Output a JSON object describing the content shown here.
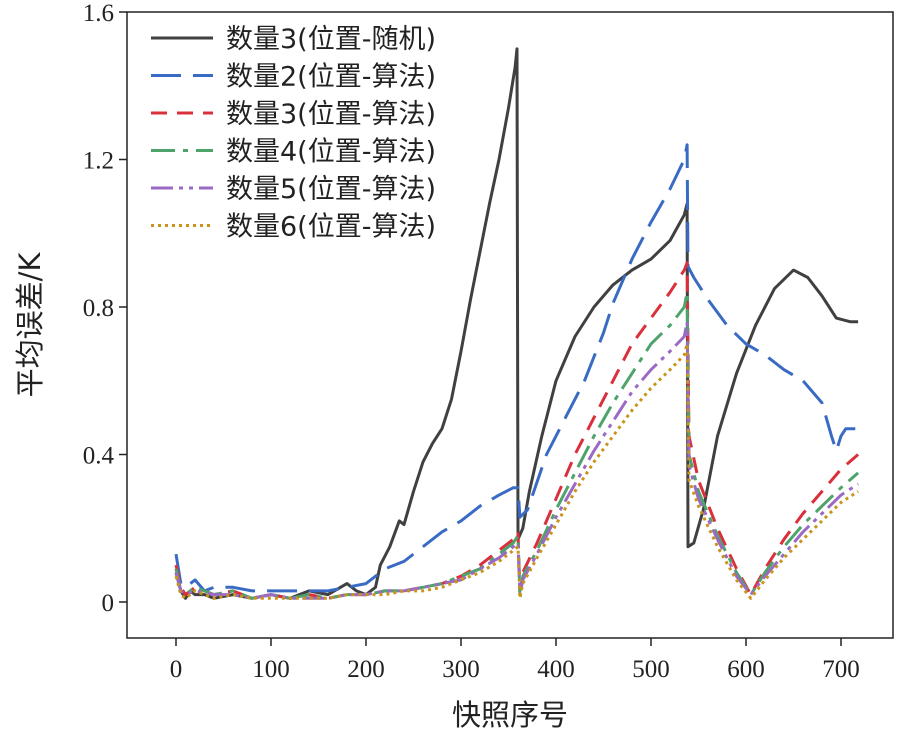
{
  "chart_data": {
    "type": "line",
    "title": "",
    "xlabel": "快照序号",
    "ylabel": "平均误差/K",
    "xlim": [
      -50,
      720
    ],
    "ylim": [
      -0.1,
      1.6
    ],
    "xticks": [
      0,
      100,
      200,
      300,
      400,
      500,
      600,
      700
    ],
    "yticks": [
      0,
      0.4,
      0.8,
      1.2,
      1.6
    ],
    "xtick_labels": [
      "0",
      "100",
      "200",
      "300",
      "400",
      "500",
      "600",
      "700"
    ],
    "ytick_labels": [
      "0",
      "0.4",
      "0.8",
      "1.2",
      "1.6"
    ],
    "legend_position": "top-left",
    "series": [
      {
        "name": "数量3(位置-随机)",
        "color": "#404040",
        "dash": "solid",
        "points": [
          [
            0,
            0.08
          ],
          [
            5,
            0.03
          ],
          [
            10,
            0.01
          ],
          [
            15,
            0.03
          ],
          [
            20,
            0.02
          ],
          [
            30,
            0.02
          ],
          [
            40,
            0.01
          ],
          [
            60,
            0.02
          ],
          [
            80,
            0.01
          ],
          [
            100,
            0.02
          ],
          [
            120,
            0.01
          ],
          [
            140,
            0.03
          ],
          [
            160,
            0.02
          ],
          [
            180,
            0.05
          ],
          [
            190,
            0.03
          ],
          [
            200,
            0.02
          ],
          [
            210,
            0.04
          ],
          [
            215,
            0.1
          ],
          [
            225,
            0.15
          ],
          [
            235,
            0.22
          ],
          [
            240,
            0.21
          ],
          [
            250,
            0.3
          ],
          [
            260,
            0.38
          ],
          [
            270,
            0.43
          ],
          [
            280,
            0.47
          ],
          [
            290,
            0.55
          ],
          [
            300,
            0.68
          ],
          [
            310,
            0.82
          ],
          [
            320,
            0.95
          ],
          [
            330,
            1.08
          ],
          [
            340,
            1.2
          ],
          [
            350,
            1.34
          ],
          [
            357,
            1.45
          ],
          [
            359,
            1.5
          ],
          [
            360,
            0.17
          ],
          [
            365,
            0.2
          ],
          [
            372,
            0.3
          ],
          [
            385,
            0.45
          ],
          [
            400,
            0.6
          ],
          [
            420,
            0.72
          ],
          [
            440,
            0.8
          ],
          [
            460,
            0.86
          ],
          [
            480,
            0.9
          ],
          [
            500,
            0.93
          ],
          [
            520,
            0.98
          ],
          [
            535,
            1.05
          ],
          [
            538,
            1.08
          ],
          [
            539,
            0.15
          ],
          [
            545,
            0.16
          ],
          [
            555,
            0.25
          ],
          [
            570,
            0.45
          ],
          [
            590,
            0.62
          ],
          [
            610,
            0.75
          ],
          [
            630,
            0.85
          ],
          [
            650,
            0.9
          ],
          [
            665,
            0.88
          ],
          [
            680,
            0.83
          ],
          [
            695,
            0.77
          ],
          [
            710,
            0.76
          ],
          [
            718,
            0.76
          ]
        ]
      },
      {
        "name": "数量2(位置-算法)",
        "color": "#3a6bc4",
        "dash": "30,12",
        "points": [
          [
            0,
            0.13
          ],
          [
            5,
            0.05
          ],
          [
            10,
            0.04
          ],
          [
            20,
            0.06
          ],
          [
            30,
            0.03
          ],
          [
            40,
            0.04
          ],
          [
            60,
            0.04
          ],
          [
            80,
            0.03
          ],
          [
            100,
            0.03
          ],
          [
            120,
            0.03
          ],
          [
            140,
            0.03
          ],
          [
            160,
            0.03
          ],
          [
            180,
            0.04
          ],
          [
            200,
            0.05
          ],
          [
            220,
            0.09
          ],
          [
            240,
            0.11
          ],
          [
            260,
            0.15
          ],
          [
            280,
            0.19
          ],
          [
            300,
            0.22
          ],
          [
            320,
            0.26
          ],
          [
            340,
            0.29
          ],
          [
            355,
            0.31
          ],
          [
            360,
            0.31
          ],
          [
            362,
            0.23
          ],
          [
            370,
            0.25
          ],
          [
            390,
            0.4
          ],
          [
            410,
            0.5
          ],
          [
            430,
            0.6
          ],
          [
            450,
            0.73
          ],
          [
            460,
            0.81
          ],
          [
            480,
            0.93
          ],
          [
            500,
            1.03
          ],
          [
            520,
            1.12
          ],
          [
            535,
            1.2
          ],
          [
            538,
            1.24
          ],
          [
            539,
            0.91
          ],
          [
            545,
            0.88
          ],
          [
            560,
            0.82
          ],
          [
            580,
            0.75
          ],
          [
            600,
            0.7
          ],
          [
            620,
            0.67
          ],
          [
            640,
            0.63
          ],
          [
            660,
            0.6
          ],
          [
            680,
            0.54
          ],
          [
            690,
            0.45
          ],
          [
            695,
            0.41
          ],
          [
            700,
            0.45
          ],
          [
            705,
            0.47
          ],
          [
            715,
            0.47
          ]
        ]
      },
      {
        "name": "数量3(位置-算法)",
        "color": "#d9303c",
        "dash": "16,10",
        "points": [
          [
            0,
            0.1
          ],
          [
            5,
            0.04
          ],
          [
            10,
            0.02
          ],
          [
            20,
            0.04
          ],
          [
            40,
            0.02
          ],
          [
            60,
            0.03
          ],
          [
            80,
            0.01
          ],
          [
            100,
            0.02
          ],
          [
            120,
            0.01
          ],
          [
            140,
            0.02
          ],
          [
            160,
            0.01
          ],
          [
            180,
            0.02
          ],
          [
            200,
            0.02
          ],
          [
            220,
            0.03
          ],
          [
            240,
            0.03
          ],
          [
            260,
            0.04
          ],
          [
            280,
            0.05
          ],
          [
            300,
            0.07
          ],
          [
            320,
            0.1
          ],
          [
            340,
            0.14
          ],
          [
            355,
            0.17
          ],
          [
            360,
            0.19
          ],
          [
            362,
            0.03
          ],
          [
            365,
            0.08
          ],
          [
            380,
            0.16
          ],
          [
            400,
            0.28
          ],
          [
            420,
            0.4
          ],
          [
            440,
            0.5
          ],
          [
            460,
            0.6
          ],
          [
            480,
            0.7
          ],
          [
            500,
            0.77
          ],
          [
            520,
            0.84
          ],
          [
            535,
            0.9
          ],
          [
            538,
            0.92
          ],
          [
            540,
            0.45
          ],
          [
            550,
            0.33
          ],
          [
            570,
            0.2
          ],
          [
            590,
            0.09
          ],
          [
            605,
            0.02
          ],
          [
            620,
            0.09
          ],
          [
            640,
            0.17
          ],
          [
            660,
            0.24
          ],
          [
            680,
            0.3
          ],
          [
            700,
            0.36
          ],
          [
            718,
            0.4
          ]
        ]
      },
      {
        "name": "数量4(位置-算法)",
        "color": "#4ea36a",
        "dash": "24,8,5,8",
        "points": [
          [
            0,
            0.09
          ],
          [
            5,
            0.03
          ],
          [
            10,
            0.02
          ],
          [
            20,
            0.04
          ],
          [
            40,
            0.02
          ],
          [
            60,
            0.03
          ],
          [
            80,
            0.01
          ],
          [
            100,
            0.02
          ],
          [
            120,
            0.01
          ],
          [
            140,
            0.02
          ],
          [
            160,
            0.01
          ],
          [
            180,
            0.02
          ],
          [
            200,
            0.02
          ],
          [
            220,
            0.03
          ],
          [
            240,
            0.03
          ],
          [
            260,
            0.04
          ],
          [
            280,
            0.05
          ],
          [
            300,
            0.07
          ],
          [
            320,
            0.09
          ],
          [
            340,
            0.13
          ],
          [
            355,
            0.16
          ],
          [
            360,
            0.18
          ],
          [
            362,
            0.02
          ],
          [
            365,
            0.07
          ],
          [
            380,
            0.14
          ],
          [
            400,
            0.25
          ],
          [
            420,
            0.35
          ],
          [
            440,
            0.45
          ],
          [
            460,
            0.54
          ],
          [
            480,
            0.62
          ],
          [
            500,
            0.7
          ],
          [
            520,
            0.75
          ],
          [
            535,
            0.8
          ],
          [
            538,
            0.84
          ],
          [
            540,
            0.4
          ],
          [
            550,
            0.3
          ],
          [
            570,
            0.18
          ],
          [
            590,
            0.08
          ],
          [
            605,
            0.02
          ],
          [
            620,
            0.08
          ],
          [
            640,
            0.15
          ],
          [
            660,
            0.21
          ],
          [
            680,
            0.26
          ],
          [
            700,
            0.31
          ],
          [
            718,
            0.35
          ]
        ]
      },
      {
        "name": "数量5(位置-算法)",
        "color": "#9a6ac4",
        "dash": "22,6,4,6,4,6",
        "points": [
          [
            0,
            0.08
          ],
          [
            5,
            0.03
          ],
          [
            10,
            0.02
          ],
          [
            20,
            0.03
          ],
          [
            40,
            0.02
          ],
          [
            60,
            0.02
          ],
          [
            80,
            0.01
          ],
          [
            100,
            0.02
          ],
          [
            120,
            0.01
          ],
          [
            140,
            0.01
          ],
          [
            160,
            0.01
          ],
          [
            180,
            0.02
          ],
          [
            200,
            0.02
          ],
          [
            220,
            0.03
          ],
          [
            240,
            0.03
          ],
          [
            260,
            0.04
          ],
          [
            280,
            0.05
          ],
          [
            300,
            0.06
          ],
          [
            320,
            0.09
          ],
          [
            340,
            0.12
          ],
          [
            355,
            0.15
          ],
          [
            360,
            0.16
          ],
          [
            362,
            0.02
          ],
          [
            365,
            0.06
          ],
          [
            380,
            0.13
          ],
          [
            400,
            0.23
          ],
          [
            420,
            0.32
          ],
          [
            440,
            0.41
          ],
          [
            460,
            0.49
          ],
          [
            480,
            0.57
          ],
          [
            500,
            0.63
          ],
          [
            520,
            0.68
          ],
          [
            535,
            0.72
          ],
          [
            538,
            0.76
          ],
          [
            540,
            0.37
          ],
          [
            550,
            0.28
          ],
          [
            570,
            0.17
          ],
          [
            590,
            0.07
          ],
          [
            605,
            0.02
          ],
          [
            620,
            0.07
          ],
          [
            640,
            0.13
          ],
          [
            660,
            0.19
          ],
          [
            680,
            0.24
          ],
          [
            700,
            0.29
          ],
          [
            718,
            0.32
          ]
        ]
      },
      {
        "name": "数量6(位置-算法)",
        "color": "#c8951a",
        "dash": "3,4",
        "points": [
          [
            0,
            0.07
          ],
          [
            5,
            0.02
          ],
          [
            10,
            0.01
          ],
          [
            20,
            0.03
          ],
          [
            40,
            0.01
          ],
          [
            60,
            0.02
          ],
          [
            80,
            0.01
          ],
          [
            100,
            0.01
          ],
          [
            120,
            0.01
          ],
          [
            140,
            0.01
          ],
          [
            160,
            0.01
          ],
          [
            180,
            0.02
          ],
          [
            200,
            0.02
          ],
          [
            220,
            0.02
          ],
          [
            240,
            0.03
          ],
          [
            260,
            0.03
          ],
          [
            280,
            0.04
          ],
          [
            300,
            0.06
          ],
          [
            320,
            0.08
          ],
          [
            340,
            0.11
          ],
          [
            355,
            0.14
          ],
          [
            360,
            0.15
          ],
          [
            362,
            0.01
          ],
          [
            365,
            0.05
          ],
          [
            380,
            0.12
          ],
          [
            400,
            0.21
          ],
          [
            420,
            0.3
          ],
          [
            440,
            0.38
          ],
          [
            460,
            0.45
          ],
          [
            480,
            0.52
          ],
          [
            500,
            0.58
          ],
          [
            520,
            0.63
          ],
          [
            535,
            0.67
          ],
          [
            538,
            0.7
          ],
          [
            540,
            0.33
          ],
          [
            550,
            0.26
          ],
          [
            570,
            0.15
          ],
          [
            590,
            0.06
          ],
          [
            605,
            0.01
          ],
          [
            620,
            0.06
          ],
          [
            640,
            0.12
          ],
          [
            660,
            0.17
          ],
          [
            680,
            0.22
          ],
          [
            700,
            0.27
          ],
          [
            718,
            0.3
          ]
        ]
      }
    ]
  }
}
